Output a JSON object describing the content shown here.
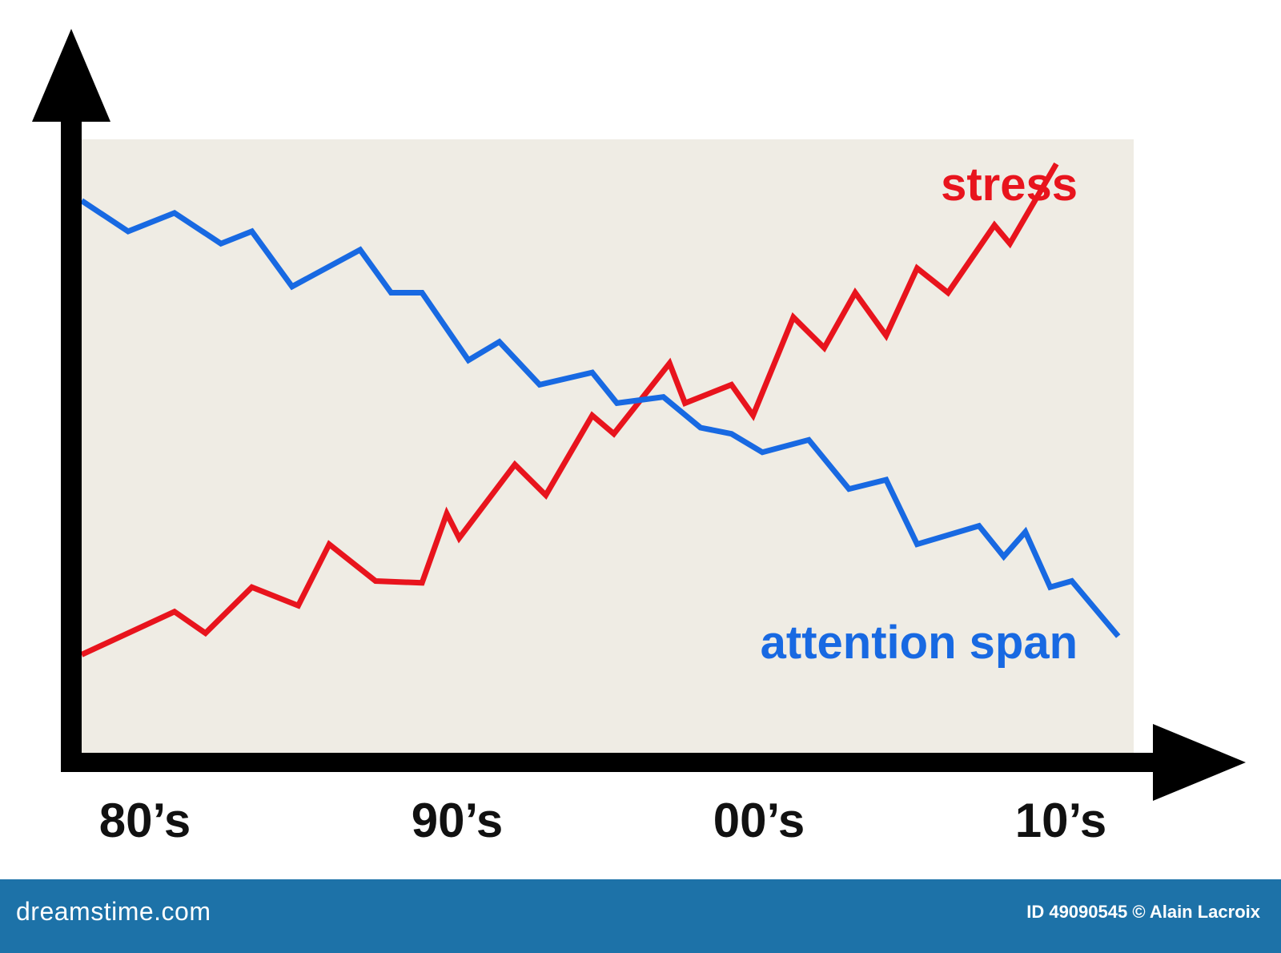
{
  "chart_data": {
    "type": "line",
    "title": "",
    "xlabel": "",
    "ylabel": "",
    "categories": [
      "80’s",
      "90’s",
      "00’s",
      "10’s"
    ],
    "x_range": [
      1980,
      2014
    ],
    "y_range": [
      0,
      100
    ],
    "grid": false,
    "plot_background": "#efece4",
    "series": [
      {
        "name": "stress",
        "color": "#e8141d",
        "x": [
          1980.0,
          1983.0,
          1984.0,
          1985.5,
          1987.0,
          1988.0,
          1989.5,
          1991.0,
          1991.8,
          1992.2,
          1994.0,
          1995.0,
          1996.5,
          1997.2,
          1999.0,
          1999.5,
          2001.0,
          2001.7,
          2003.0,
          2004.0,
          2005.0,
          2006.0,
          2007.0,
          2008.0,
          2009.5,
          2010.0,
          2011.5
        ],
        "y": [
          16.0,
          23.0,
          19.5,
          27.0,
          24.0,
          34.0,
          28.0,
          27.7,
          39.0,
          35.0,
          47.0,
          42.0,
          55.0,
          52.0,
          63.5,
          57.0,
          60.0,
          55.0,
          71.0,
          66.0,
          75.0,
          68.0,
          79.0,
          75.0,
          86.0,
          83.0,
          96.0
        ]
      },
      {
        "name": "attention span",
        "color": "#1869e2",
        "x": [
          1980.0,
          1981.5,
          1983.0,
          1984.5,
          1985.5,
          1986.8,
          1989.0,
          1990.0,
          1991.0,
          1992.5,
          1993.5,
          1994.8,
          1996.5,
          1997.3,
          1998.8,
          2000.0,
          2001.0,
          2002.0,
          2003.5,
          2004.8,
          2006.0,
          2007.0,
          2009.0,
          2009.8,
          2010.5,
          2011.3,
          2012.0,
          2013.5
        ],
        "y": [
          90.0,
          85.0,
          88.0,
          83.0,
          85.0,
          76.0,
          82.0,
          75.0,
          75.0,
          64.0,
          67.0,
          60.0,
          62.0,
          57.0,
          58.0,
          53.0,
          52.0,
          49.0,
          51.0,
          43.0,
          44.5,
          34.0,
          37.0,
          32.0,
          36.0,
          27.0,
          28.0,
          19.0
        ]
      }
    ]
  },
  "footer": {
    "brand": "dreamstime.com",
    "credit": "ID 49090545 © Alain Lacroix",
    "background": "#1d72a8"
  }
}
